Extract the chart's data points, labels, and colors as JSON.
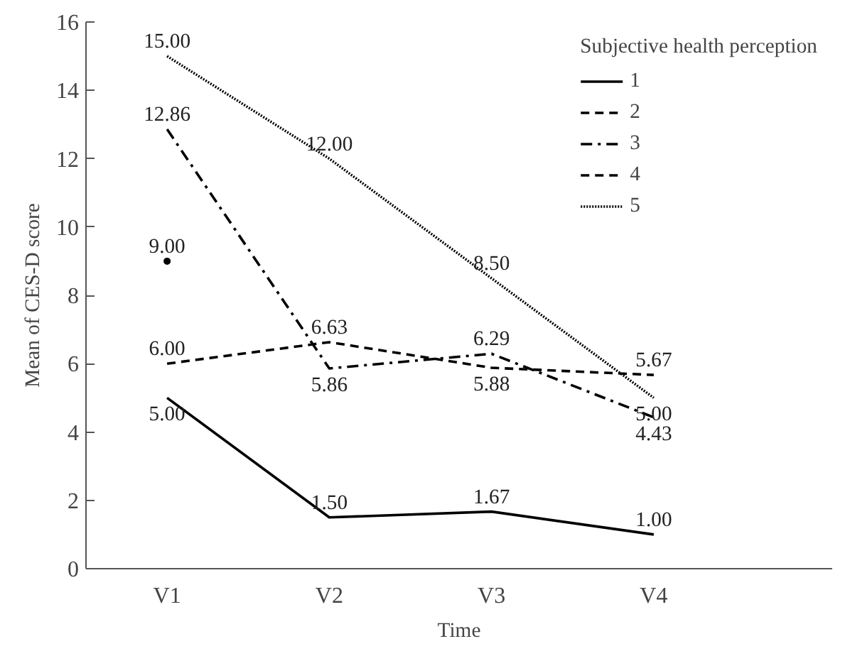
{
  "chart_data": {
    "type": "line",
    "xlabel": "Time",
    "ylabel": "Mean of CES-D score",
    "legend_title": "Subjective health perception",
    "legend": "top right",
    "categories": [
      "V1",
      "V2",
      "V3",
      "V4"
    ],
    "ylim": [
      0,
      16
    ],
    "yticks": [
      0,
      2,
      4,
      6,
      8,
      10,
      12,
      14,
      16
    ],
    "grid": false,
    "series": [
      {
        "name": "1",
        "color": "#000000",
        "line_style": "solid",
        "values": [
          5.0,
          1.5,
          1.67,
          1.0
        ],
        "value_labels": [
          "5.00",
          "1.50",
          "1.67",
          "1.00"
        ]
      },
      {
        "name": "2",
        "color": "#000000",
        "line_style": "dashed",
        "values": [
          6.0,
          6.63,
          5.88,
          5.67
        ],
        "value_labels": [
          "6.00",
          "6.63",
          "5.88",
          "5.67"
        ]
      },
      {
        "name": "3",
        "color": "#000000",
        "line_style": "dashdot",
        "values": [
          12.86,
          5.86,
          6.29,
          4.43
        ],
        "value_labels": [
          "12.86",
          "5.86",
          "6.29",
          "4.43"
        ]
      },
      {
        "name": "4",
        "color": "#000000",
        "line_style": "dashed",
        "marker": "circle",
        "values": [
          9.0,
          null,
          null,
          null
        ],
        "value_labels": [
          "9.00",
          null,
          null,
          null
        ]
      },
      {
        "name": "5",
        "color": "#000000",
        "line_style": "dotted",
        "values": [
          15.0,
          12.0,
          8.5,
          5.0
        ],
        "value_labels": [
          "15.00",
          "12.00",
          "8.50",
          "5.00"
        ]
      }
    ]
  }
}
